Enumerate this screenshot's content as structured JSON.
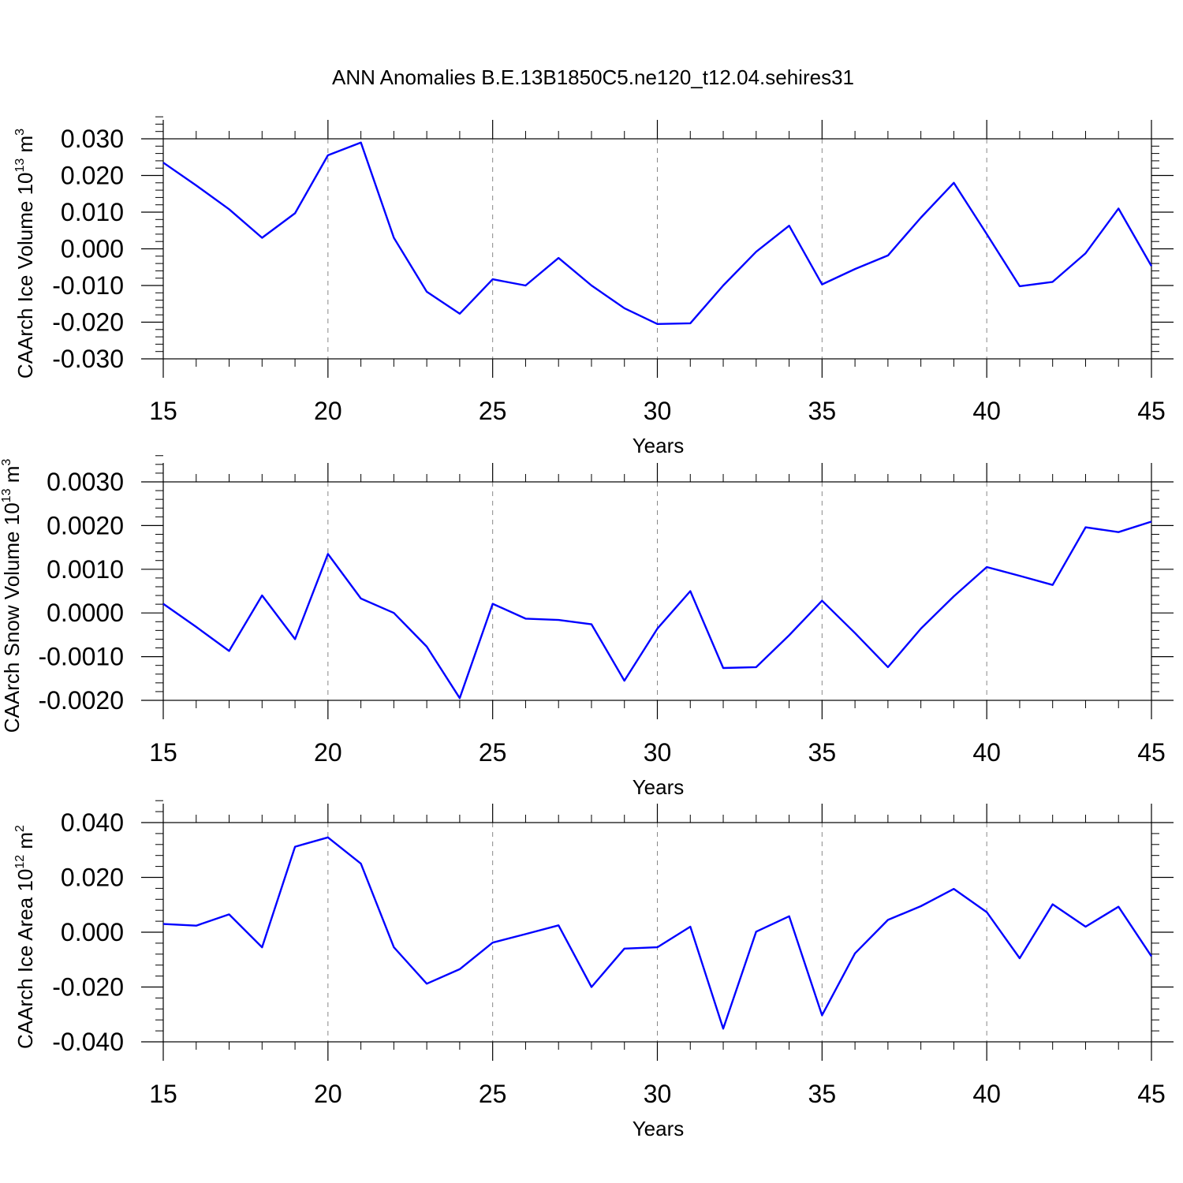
{
  "title": "ANN Anomalies B.E.13B1850C5.ne120_t12.04.sehires31",
  "chart_data": [
    {
      "type": "line",
      "ylabel": {
        "text": "CAArch Ice Volume 10",
        "sup1": "13",
        "unit": " m",
        "sup2": "3"
      },
      "xlabel": "Years",
      "xlim": [
        15,
        45
      ],
      "ylim": [
        -0.03,
        0.03
      ],
      "x_ticks": [
        15,
        20,
        25,
        30,
        35,
        40,
        45
      ],
      "x_tick_labels": [
        "15",
        "20",
        "25",
        "30",
        "35",
        "40",
        "45"
      ],
      "y_ticks": [
        -0.03,
        -0.02,
        -0.01,
        0.0,
        0.01,
        0.02,
        0.03
      ],
      "y_tick_labels": [
        "-0.030",
        "-0.020",
        "-0.010",
        "0.000",
        "0.010",
        "0.020",
        "0.030"
      ],
      "gridlines_x": [
        20,
        25,
        30,
        35,
        40
      ],
      "series": [
        {
          "name": "CAArch Ice Volume",
          "color": "#0000ff",
          "x": [
            15,
            16,
            17,
            18,
            19,
            20,
            21,
            22,
            23,
            24,
            25,
            26,
            27,
            28,
            29,
            30,
            31,
            32,
            33,
            34,
            35,
            36,
            37,
            38,
            39,
            40,
            41,
            42,
            43,
            44,
            45
          ],
          "values": [
            0.0235,
            0.0173,
            0.0108,
            0.003,
            0.0097,
            0.0255,
            0.029,
            0.003,
            -0.0117,
            -0.0177,
            -0.0083,
            -0.01,
            -0.0025,
            -0.01,
            -0.0162,
            -0.0205,
            -0.0203,
            -0.01,
            -0.0008,
            0.0063,
            -0.0097,
            -0.0055,
            -0.0018,
            0.0085,
            0.018,
            0.004,
            -0.0102,
            -0.009,
            -0.0012,
            0.011,
            -0.0047
          ]
        }
      ]
    },
    {
      "type": "line",
      "ylabel": {
        "text": "CAArch Snow Volume 10",
        "sup1": "13",
        "unit": " m",
        "sup2": "3"
      },
      "xlabel": "Years",
      "xlim": [
        15,
        45
      ],
      "ylim": [
        -0.002,
        0.003
      ],
      "x_ticks": [
        15,
        20,
        25,
        30,
        35,
        40,
        45
      ],
      "x_tick_labels": [
        "15",
        "20",
        "25",
        "30",
        "35",
        "40",
        "45"
      ],
      "y_ticks": [
        -0.002,
        -0.001,
        0.0,
        0.001,
        0.002,
        0.003
      ],
      "y_tick_labels": [
        "-0.0020",
        "-0.0010",
        "0.0000",
        "0.0010",
        "0.0020",
        "0.0030"
      ],
      "gridlines_x": [
        20,
        25,
        30,
        35,
        40
      ],
      "series": [
        {
          "name": "CAArch Snow Volume",
          "color": "#0000ff",
          "x": [
            15,
            16,
            17,
            18,
            19,
            20,
            21,
            22,
            23,
            24,
            25,
            26,
            27,
            28,
            29,
            30,
            31,
            32,
            33,
            34,
            35,
            36,
            37,
            38,
            39,
            40,
            41,
            42,
            43,
            44,
            45
          ],
          "values": [
            0.00021,
            -0.00032,
            -0.00087,
            0.0004,
            -0.0006,
            0.00135,
            0.00033,
            0.0,
            -0.00077,
            -0.00195,
            0.00021,
            -0.00013,
            -0.00016,
            -0.00026,
            -0.00155,
            -0.00036,
            0.0005,
            -0.00126,
            -0.00124,
            -0.00051,
            0.00028,
            -0.00046,
            -0.00124,
            -0.00036,
            0.00038,
            0.00105,
            0.00085,
            0.00064,
            0.00196,
            0.00185,
            0.00209
          ]
        }
      ]
    },
    {
      "type": "line",
      "ylabel": {
        "text": "CAArch Ice Area 10",
        "sup1": "12",
        "unit": " m",
        "sup2": "2"
      },
      "xlabel": "Years",
      "xlim": [
        15,
        45
      ],
      "ylim": [
        -0.04,
        0.04
      ],
      "x_ticks": [
        15,
        20,
        25,
        30,
        35,
        40,
        45
      ],
      "x_tick_labels": [
        "15",
        "20",
        "25",
        "30",
        "35",
        "40",
        "45"
      ],
      "y_ticks": [
        -0.04,
        -0.02,
        0.0,
        0.02,
        0.04
      ],
      "y_tick_labels": [
        "-0.040",
        "-0.020",
        "0.000",
        "0.020",
        "0.040"
      ],
      "gridlines_x": [
        20,
        25,
        30,
        35,
        40
      ],
      "series": [
        {
          "name": "CAArch Ice Area",
          "color": "#0000ff",
          "x": [
            15,
            16,
            17,
            18,
            19,
            20,
            21,
            22,
            23,
            24,
            25,
            26,
            27,
            28,
            29,
            30,
            31,
            32,
            33,
            34,
            35,
            36,
            37,
            38,
            39,
            40,
            41,
            42,
            43,
            44,
            45
          ],
          "values": [
            0.003,
            0.0024,
            0.0065,
            -0.0055,
            0.0312,
            0.0346,
            0.025,
            -0.0055,
            -0.0188,
            -0.0135,
            -0.0038,
            -0.0007,
            0.0025,
            -0.02,
            -0.006,
            -0.0055,
            0.002,
            -0.0352,
            0.0002,
            0.0058,
            -0.0303,
            -0.0077,
            0.0045,
            0.0095,
            0.0158,
            0.0073,
            -0.0095,
            0.0102,
            0.002,
            0.0093,
            -0.0088
          ]
        }
      ]
    }
  ]
}
